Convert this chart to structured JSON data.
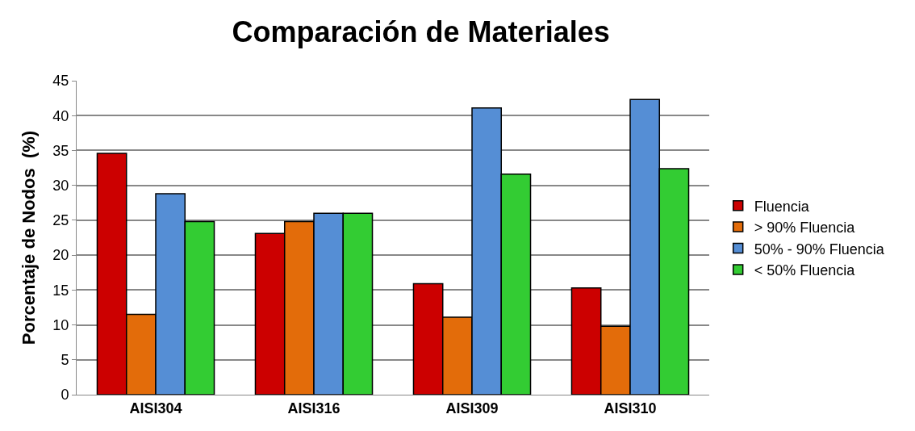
{
  "chart_data": {
    "type": "bar",
    "title": "Comparación de Materiales",
    "ylabel": "Porcentaje de Nodos  (%)",
    "categories": [
      "AISI304",
      "AISI316",
      "AISI309",
      "AISI310"
    ],
    "series": [
      {
        "name": "Fluencia",
        "color": "#cc0000",
        "values": [
          34.6,
          23.1,
          15.9,
          15.3
        ]
      },
      {
        "name": "> 90% Fluencia",
        "color": "#e36c0a",
        "values": [
          11.5,
          24.8,
          11.1,
          9.8
        ]
      },
      {
        "name": "50% - 90% Fluencia",
        "color": "#558ed5",
        "values": [
          28.8,
          26.0,
          41.1,
          42.3
        ]
      },
      {
        "name": "< 50% Fluencia",
        "color": "#33cc33",
        "values": [
          24.8,
          26.0,
          31.6,
          32.4
        ]
      }
    ],
    "ylim": [
      0,
      45
    ],
    "yticks": [
      0,
      5,
      10,
      15,
      20,
      25,
      30,
      35,
      40,
      45
    ],
    "grid": "y",
    "legend": "right"
  }
}
